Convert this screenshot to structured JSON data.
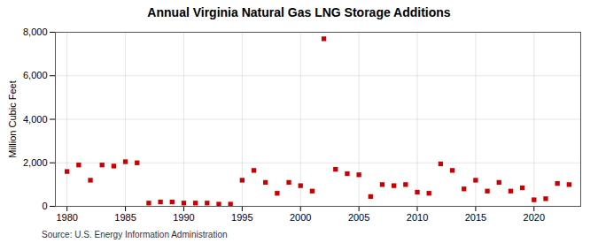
{
  "chart_data": {
    "type": "scatter",
    "title": "Annual Virginia Natural Gas LNG Storage Additions",
    "ylabel": "Million Cubic Feet",
    "source": "Source: U.S. Energy Information Administration",
    "x": [
      1980,
      1981,
      1982,
      1983,
      1984,
      1985,
      1986,
      1987,
      1988,
      1989,
      1990,
      1991,
      1992,
      1993,
      1994,
      1995,
      1996,
      1997,
      1998,
      1999,
      2000,
      2001,
      2002,
      2003,
      2004,
      2005,
      2006,
      2007,
      2008,
      2009,
      2010,
      2011,
      2012,
      2013,
      2014,
      2015,
      2016,
      2017,
      2018,
      2019,
      2020,
      2021,
      2022,
      2023
    ],
    "values": [
      1600,
      1900,
      1200,
      1900,
      1850,
      2050,
      2000,
      150,
      200,
      200,
      150,
      150,
      150,
      100,
      100,
      1200,
      1650,
      1100,
      600,
      1100,
      950,
      700,
      7700,
      1700,
      1500,
      1450,
      450,
      1000,
      950,
      1000,
      650,
      600,
      1950,
      1650,
      800,
      1200,
      700,
      1100,
      700,
      850,
      300,
      350,
      1050,
      1000
    ],
    "color": "#cc0000",
    "marker": "square",
    "xlim": [
      1979,
      2024
    ],
    "xticks": [
      1980,
      1985,
      1990,
      1995,
      2000,
      2005,
      2010,
      2015,
      2020
    ],
    "ylim": [
      0,
      8000
    ],
    "yticks": [
      0,
      {
        "value": 2000,
        "label": "2,000"
      },
      {
        "value": 4000,
        "label": "4,000"
      },
      {
        "value": 6000,
        "label": "6,000"
      },
      {
        "value": 8000,
        "label": "8,000"
      }
    ],
    "grid": true
  }
}
